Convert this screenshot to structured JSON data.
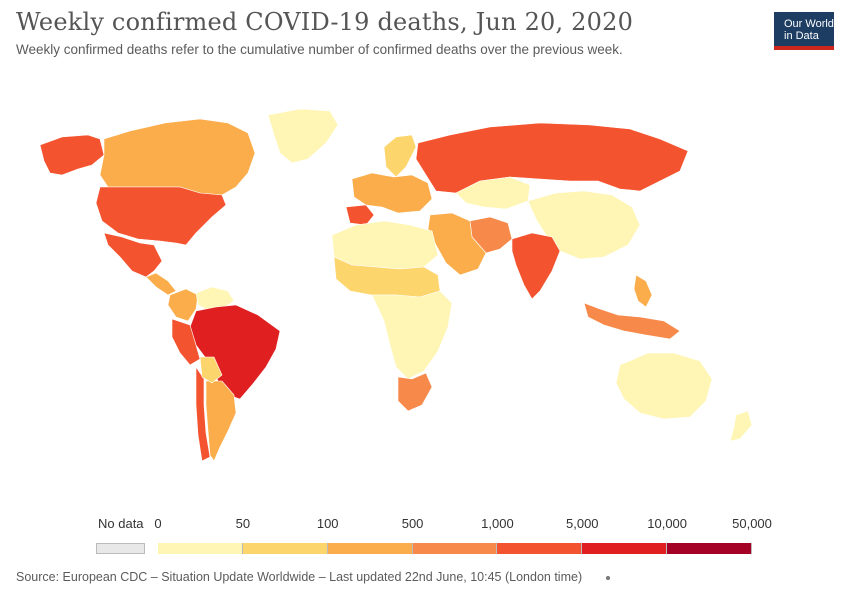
{
  "header": {
    "title": "Weekly confirmed COVID-19 deaths, Jun 20, 2020",
    "subtitle": "Weekly confirmed deaths refer to the cumulative number of confirmed deaths over the previous week."
  },
  "logo": {
    "line1": "Our World",
    "line2": "in Data"
  },
  "legend": {
    "no_data_label": "No data",
    "no_data_color": "#e8e8e8",
    "ticks": [
      "0",
      "50",
      "100",
      "500",
      "1,000",
      "5,000",
      "10,000",
      "50,000"
    ],
    "colors": [
      "#fff5b5",
      "#fdd56d",
      "#fbad4b",
      "#f7894a",
      "#f4532f",
      "#e02020",
      "#a50026"
    ]
  },
  "map": {
    "regions": [
      {
        "name": "Alaska/Yukon",
        "bin": 4
      },
      {
        "name": "Canada",
        "bin": 2
      },
      {
        "name": "Greenland",
        "bin": 0
      },
      {
        "name": "United States",
        "bin": 4
      },
      {
        "name": "Mexico",
        "bin": 4
      },
      {
        "name": "Central America",
        "bin": 2
      },
      {
        "name": "Colombia",
        "bin": 2
      },
      {
        "name": "Venezuela",
        "bin": 0
      },
      {
        "name": "Brazil",
        "bin": 5
      },
      {
        "name": "Peru",
        "bin": 4
      },
      {
        "name": "Chile",
        "bin": 4
      },
      {
        "name": "Argentina",
        "bin": 2
      },
      {
        "name": "Bolivia",
        "bin": 1
      },
      {
        "name": "Russia",
        "bin": 4
      },
      {
        "name": "Scandinavia",
        "bin": 1
      },
      {
        "name": "Western Europe",
        "bin": 2
      },
      {
        "name": "Spain",
        "bin": 4
      },
      {
        "name": "China",
        "bin": 0
      },
      {
        "name": "Kazakhstan",
        "bin": 0
      },
      {
        "name": "India",
        "bin": 4
      },
      {
        "name": "Iran",
        "bin": 3
      },
      {
        "name": "Middle East",
        "bin": 2
      },
      {
        "name": "North Africa",
        "bin": 0
      },
      {
        "name": "Sahel",
        "bin": 1
      },
      {
        "name": "Central Africa",
        "bin": 0
      },
      {
        "name": "South Africa",
        "bin": 3
      },
      {
        "name": "Indonesia",
        "bin": 3
      },
      {
        "name": "Philippines",
        "bin": 2
      },
      {
        "name": "Australia",
        "bin": 0
      },
      {
        "name": "New Zealand",
        "bin": 0
      }
    ]
  },
  "source": "Source: European CDC – Situation Update Worldwide – Last updated 22nd June, 10:45 (London time)"
}
